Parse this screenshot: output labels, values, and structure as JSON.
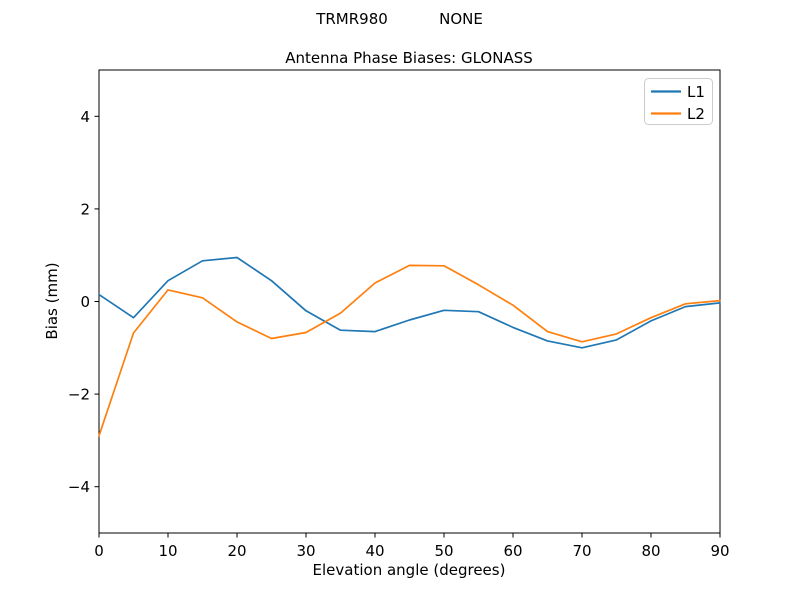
{
  "suptitle": {
    "left": "TRMR980",
    "right": "NONE"
  },
  "chart_data": {
    "type": "line",
    "title": "Antenna Phase Biases: GLONASS",
    "suptitle": "TRMR980         NONE",
    "xlabel": "Elevation angle (degrees)",
    "ylabel": "Bias (mm)",
    "xlim": [
      0,
      90
    ],
    "ylim": [
      -5,
      5
    ],
    "xticks": [
      0,
      10,
      20,
      30,
      40,
      50,
      60,
      70,
      80,
      90
    ],
    "yticks": [
      -4,
      -2,
      0,
      2,
      4
    ],
    "grid": false,
    "legend_position": "upper right",
    "x": [
      0,
      5,
      10,
      15,
      20,
      25,
      30,
      35,
      40,
      45,
      50,
      55,
      60,
      65,
      70,
      75,
      80,
      85,
      90
    ],
    "series": [
      {
        "name": "L1",
        "color": "#1f77b4",
        "values": [
          0.15,
          -0.35,
          0.45,
          0.88,
          0.95,
          0.45,
          -0.2,
          -0.62,
          -0.65,
          -0.4,
          -0.19,
          -0.22,
          -0.56,
          -0.85,
          -1.0,
          -0.83,
          -0.42,
          -0.11,
          -0.03
        ]
      },
      {
        "name": "L2",
        "color": "#ff7f0e",
        "values": [
          -2.9,
          -0.68,
          0.25,
          0.08,
          -0.44,
          -0.8,
          -0.67,
          -0.25,
          0.4,
          0.78,
          0.77,
          0.36,
          -0.08,
          -0.65,
          -0.87,
          -0.7,
          -0.35,
          -0.05,
          0.02
        ]
      }
    ],
    "spine_color": "#000000",
    "legend_border_color": "#cccccc"
  }
}
